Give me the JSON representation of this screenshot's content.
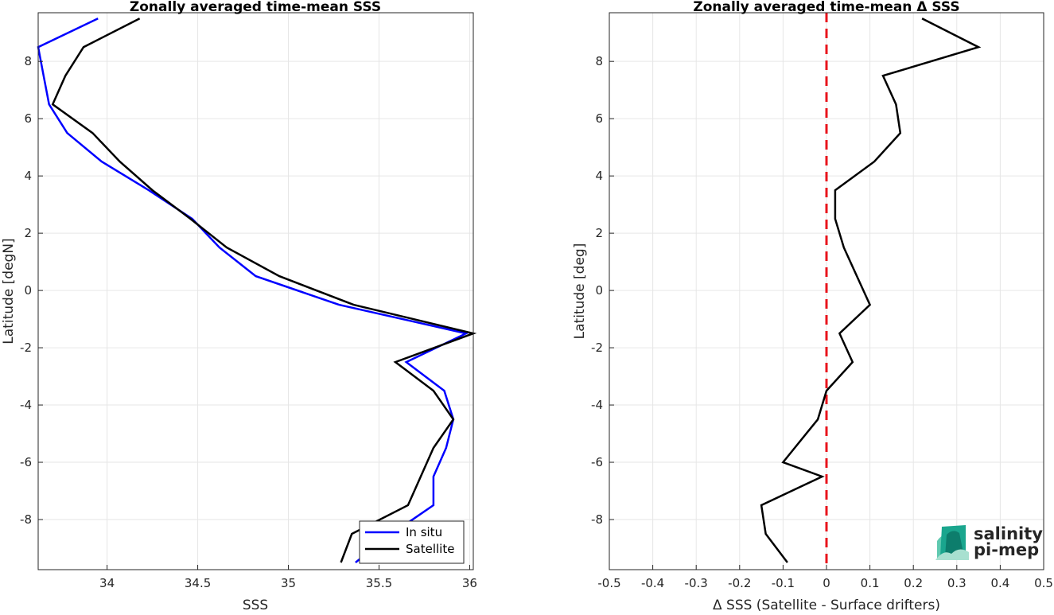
{
  "chart_data": [
    {
      "type": "line",
      "title": "Zonally averaged time-mean SSS",
      "xlabel": "SSS",
      "ylabel": "Latitude [degN]",
      "xlim": [
        33.62,
        36.02
      ],
      "ylim": [
        -9.75,
        9.7
      ],
      "x_ticks": [
        34,
        34.5,
        35,
        35.5,
        36
      ],
      "x_tick_labels": [
        "34",
        "34.5",
        "35",
        "35.5",
        "36"
      ],
      "y_ticks": [
        -8,
        -6,
        -4,
        -2,
        0,
        2,
        4,
        6,
        8
      ],
      "y_tick_labels": [
        "-8",
        "-6",
        "-4",
        "-2",
        "0",
        "2",
        "4",
        "6",
        "8"
      ],
      "grid": true,
      "legend_position": "bottom-right",
      "series": [
        {
          "name": "In situ",
          "color": "#0000ff",
          "points": [
            [
              33.95,
              9.5
            ],
            [
              33.62,
              8.5
            ],
            [
              33.65,
              7.5
            ],
            [
              33.68,
              6.5
            ],
            [
              33.78,
              5.5
            ],
            [
              33.97,
              4.5
            ],
            [
              34.23,
              3.5
            ],
            [
              34.47,
              2.5
            ],
            [
              34.62,
              1.5
            ],
            [
              34.82,
              0.5
            ],
            [
              35.28,
              -0.5
            ],
            [
              35.98,
              -1.5
            ],
            [
              35.65,
              -2.5
            ],
            [
              35.86,
              -3.5
            ],
            [
              35.91,
              -4.5
            ],
            [
              35.87,
              -5.5
            ],
            [
              35.8,
              -6.5
            ],
            [
              35.8,
              -7.5
            ],
            [
              35.57,
              -8.5
            ],
            [
              35.37,
              -9.5
            ]
          ]
        },
        {
          "name": "Satellite",
          "color": "#000000",
          "points": [
            [
              34.18,
              9.5
            ],
            [
              33.87,
              8.5
            ],
            [
              33.77,
              7.5
            ],
            [
              33.7,
              6.5
            ],
            [
              33.92,
              5.5
            ],
            [
              34.07,
              4.5
            ],
            [
              34.25,
              3.5
            ],
            [
              34.46,
              2.5
            ],
            [
              34.66,
              1.5
            ],
            [
              34.95,
              0.5
            ],
            [
              35.36,
              -0.5
            ],
            [
              36.02,
              -1.5
            ],
            [
              35.59,
              -2.5
            ],
            [
              35.8,
              -3.5
            ],
            [
              35.91,
              -4.5
            ],
            [
              35.8,
              -5.5
            ],
            [
              35.73,
              -6.5
            ],
            [
              35.66,
              -7.5
            ],
            [
              35.35,
              -8.5
            ],
            [
              35.29,
              -9.5
            ]
          ]
        }
      ]
    },
    {
      "type": "line",
      "title": "Zonally averaged time-mean Δ SSS",
      "xlabel": "Δ SSS (Satellite - Surface drifters)",
      "ylabel": "Latitude [deg]",
      "xlim": [
        -0.5,
        0.5
      ],
      "ylim": [
        -9.75,
        9.7
      ],
      "x_ticks": [
        -0.5,
        -0.4,
        -0.3,
        -0.2,
        -0.1,
        0,
        0.1,
        0.2,
        0.3,
        0.4,
        0.5
      ],
      "x_tick_labels": [
        "-0.5",
        "-0.4",
        "-0.3",
        "-0.2",
        "-0.1",
        "0",
        "0.1",
        "0.2",
        "0.3",
        "0.4",
        "0.5"
      ],
      "y_ticks": [
        -8,
        -6,
        -4,
        -2,
        0,
        2,
        4,
        6,
        8
      ],
      "y_tick_labels": [
        "-8",
        "-6",
        "-4",
        "-2",
        "0",
        "2",
        "4",
        "6",
        "8"
      ],
      "grid": true,
      "reference_line": {
        "x": 0,
        "color": "#e8141c",
        "style": "dashed"
      },
      "series": [
        {
          "color": "#000000",
          "points": [
            [
              0.22,
              9.5
            ],
            [
              0.35,
              8.5
            ],
            [
              0.13,
              7.5
            ],
            [
              0.16,
              6.5
            ],
            [
              0.17,
              5.5
            ],
            [
              0.11,
              4.5
            ],
            [
              0.02,
              3.5
            ],
            [
              0.02,
              2.5
            ],
            [
              0.04,
              1.5
            ],
            [
              0.07,
              0.5
            ],
            [
              0.1,
              -0.5
            ],
            [
              0.03,
              -1.5
            ],
            [
              0.06,
              -2.5
            ],
            [
              0.0,
              -3.5
            ],
            [
              -0.02,
              -4.5
            ],
            [
              -0.1,
              -6.0
            ],
            [
              -0.01,
              -6.5
            ],
            [
              -0.15,
              -7.5
            ],
            [
              -0.14,
              -8.5
            ],
            [
              -0.09,
              -9.5
            ]
          ]
        }
      ]
    }
  ],
  "logo": {
    "line1": "salinity",
    "line2": "pi-mep",
    "colors": [
      "#1aa68e",
      "#0d7d6c",
      "#5fc9b0",
      "#a8e0d0"
    ]
  }
}
